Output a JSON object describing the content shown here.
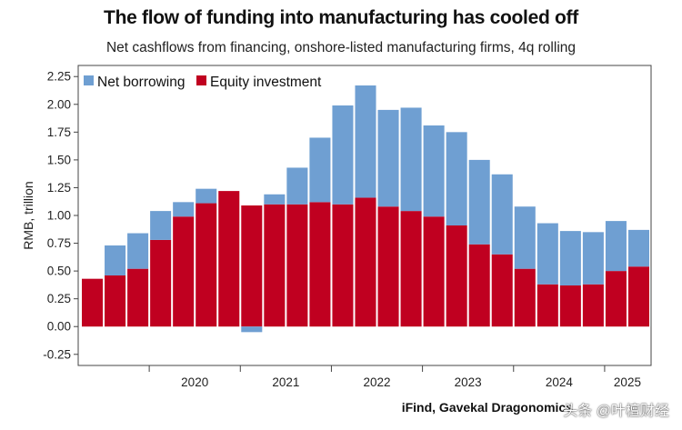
{
  "chart_data": {
    "type": "bar",
    "stacked": true,
    "title": "The flow of funding into manufacturing has cooled off",
    "subtitle": "Net cashflows from financing, onshore-listed manufacturing firms, 4q rolling",
    "ylabel": "RMB, trillion",
    "ylim": [
      -0.35,
      2.35
    ],
    "yticks": [
      -0.25,
      0.0,
      0.25,
      0.5,
      0.75,
      1.0,
      1.25,
      1.5,
      1.75,
      2.0,
      2.25
    ],
    "ytick_labels": [
      "-0.25",
      "0.00",
      "0.25",
      "0.50",
      "0.75",
      "1.00",
      "1.25",
      "1.50",
      "1.75",
      "2.00",
      "2.25"
    ],
    "x_year_labels": [
      "2020",
      "2021",
      "2022",
      "2023",
      "2024",
      "2025"
    ],
    "categories": [
      "2019Q2",
      "2019Q3",
      "2019Q4",
      "2020Q1",
      "2020Q2",
      "2020Q3",
      "2020Q4",
      "2021Q1",
      "2021Q2",
      "2021Q3",
      "2021Q4",
      "2022Q1",
      "2022Q2",
      "2022Q3",
      "2022Q4",
      "2023Q1",
      "2023Q2",
      "2023Q3",
      "2023Q4",
      "2024Q1",
      "2024Q2",
      "2024Q3",
      "2024Q4",
      "2025Q1",
      "2025Q2"
    ],
    "legend_position": "top-left",
    "grid": false,
    "series": [
      {
        "name": "Net borrowing",
        "color": "#6f9fd2",
        "values": [
          0.0,
          0.27,
          0.32,
          0.26,
          0.13,
          0.13,
          0.0,
          -0.05,
          0.09,
          0.33,
          0.58,
          0.89,
          1.01,
          0.87,
          0.93,
          0.82,
          0.84,
          0.76,
          0.72,
          0.56,
          0.55,
          0.49,
          0.47,
          0.45,
          0.33
        ]
      },
      {
        "name": "Equity investment",
        "color": "#c00020",
        "values": [
          0.43,
          0.46,
          0.52,
          0.78,
          0.99,
          1.11,
          1.22,
          1.09,
          1.1,
          1.1,
          1.12,
          1.1,
          1.16,
          1.08,
          1.04,
          0.99,
          0.91,
          0.74,
          0.65,
          0.52,
          0.38,
          0.37,
          0.38,
          0.5,
          0.54
        ]
      }
    ],
    "source": "iFind, Gavekal Dragonomics"
  },
  "watermark": "头条 @叶檀财经"
}
